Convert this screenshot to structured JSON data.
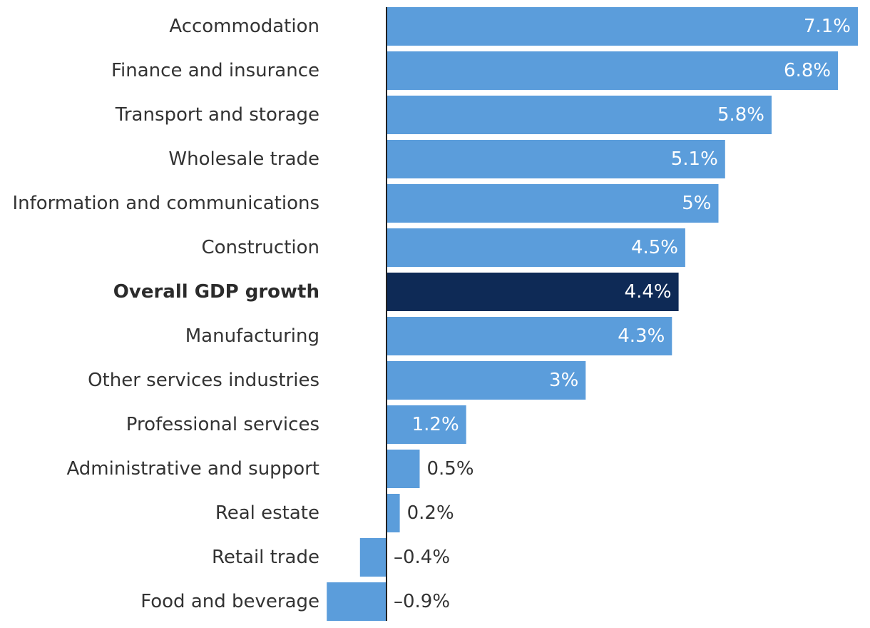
{
  "chart_data": {
    "type": "bar",
    "orientation": "horizontal",
    "categories": [
      "Accommodation",
      "Finance and insurance",
      "Transport and storage",
      "Wholesale trade",
      "Information and communications",
      "Construction",
      "Overall GDP growth",
      "Manufacturing",
      "Other services industries",
      "Professional services",
      "Administrative and support",
      "Real estate",
      "Retail trade",
      "Food and beverage"
    ],
    "values": [
      7.1,
      6.8,
      5.8,
      5.1,
      5.0,
      4.5,
      4.4,
      4.3,
      3.0,
      1.2,
      0.5,
      0.2,
      -0.4,
      -0.9
    ],
    "value_labels": [
      "7.1%",
      "6.8%",
      "5.8%",
      "5.1%",
      "5%",
      "4.5%",
      "4.4%",
      "4.3%",
      "3%",
      "1.2%",
      "0.5%",
      "0.2%",
      "–0.4%",
      "–0.9%"
    ],
    "highlight_category": "Overall GDP growth",
    "xlim": [
      -0.9,
      7.1
    ],
    "colors": {
      "bar": "#5b9ddb",
      "highlight_bar": "#0e2a56",
      "axis": "#222222",
      "label_inside": "#ffffff",
      "label_outside": "#333333"
    }
  }
}
